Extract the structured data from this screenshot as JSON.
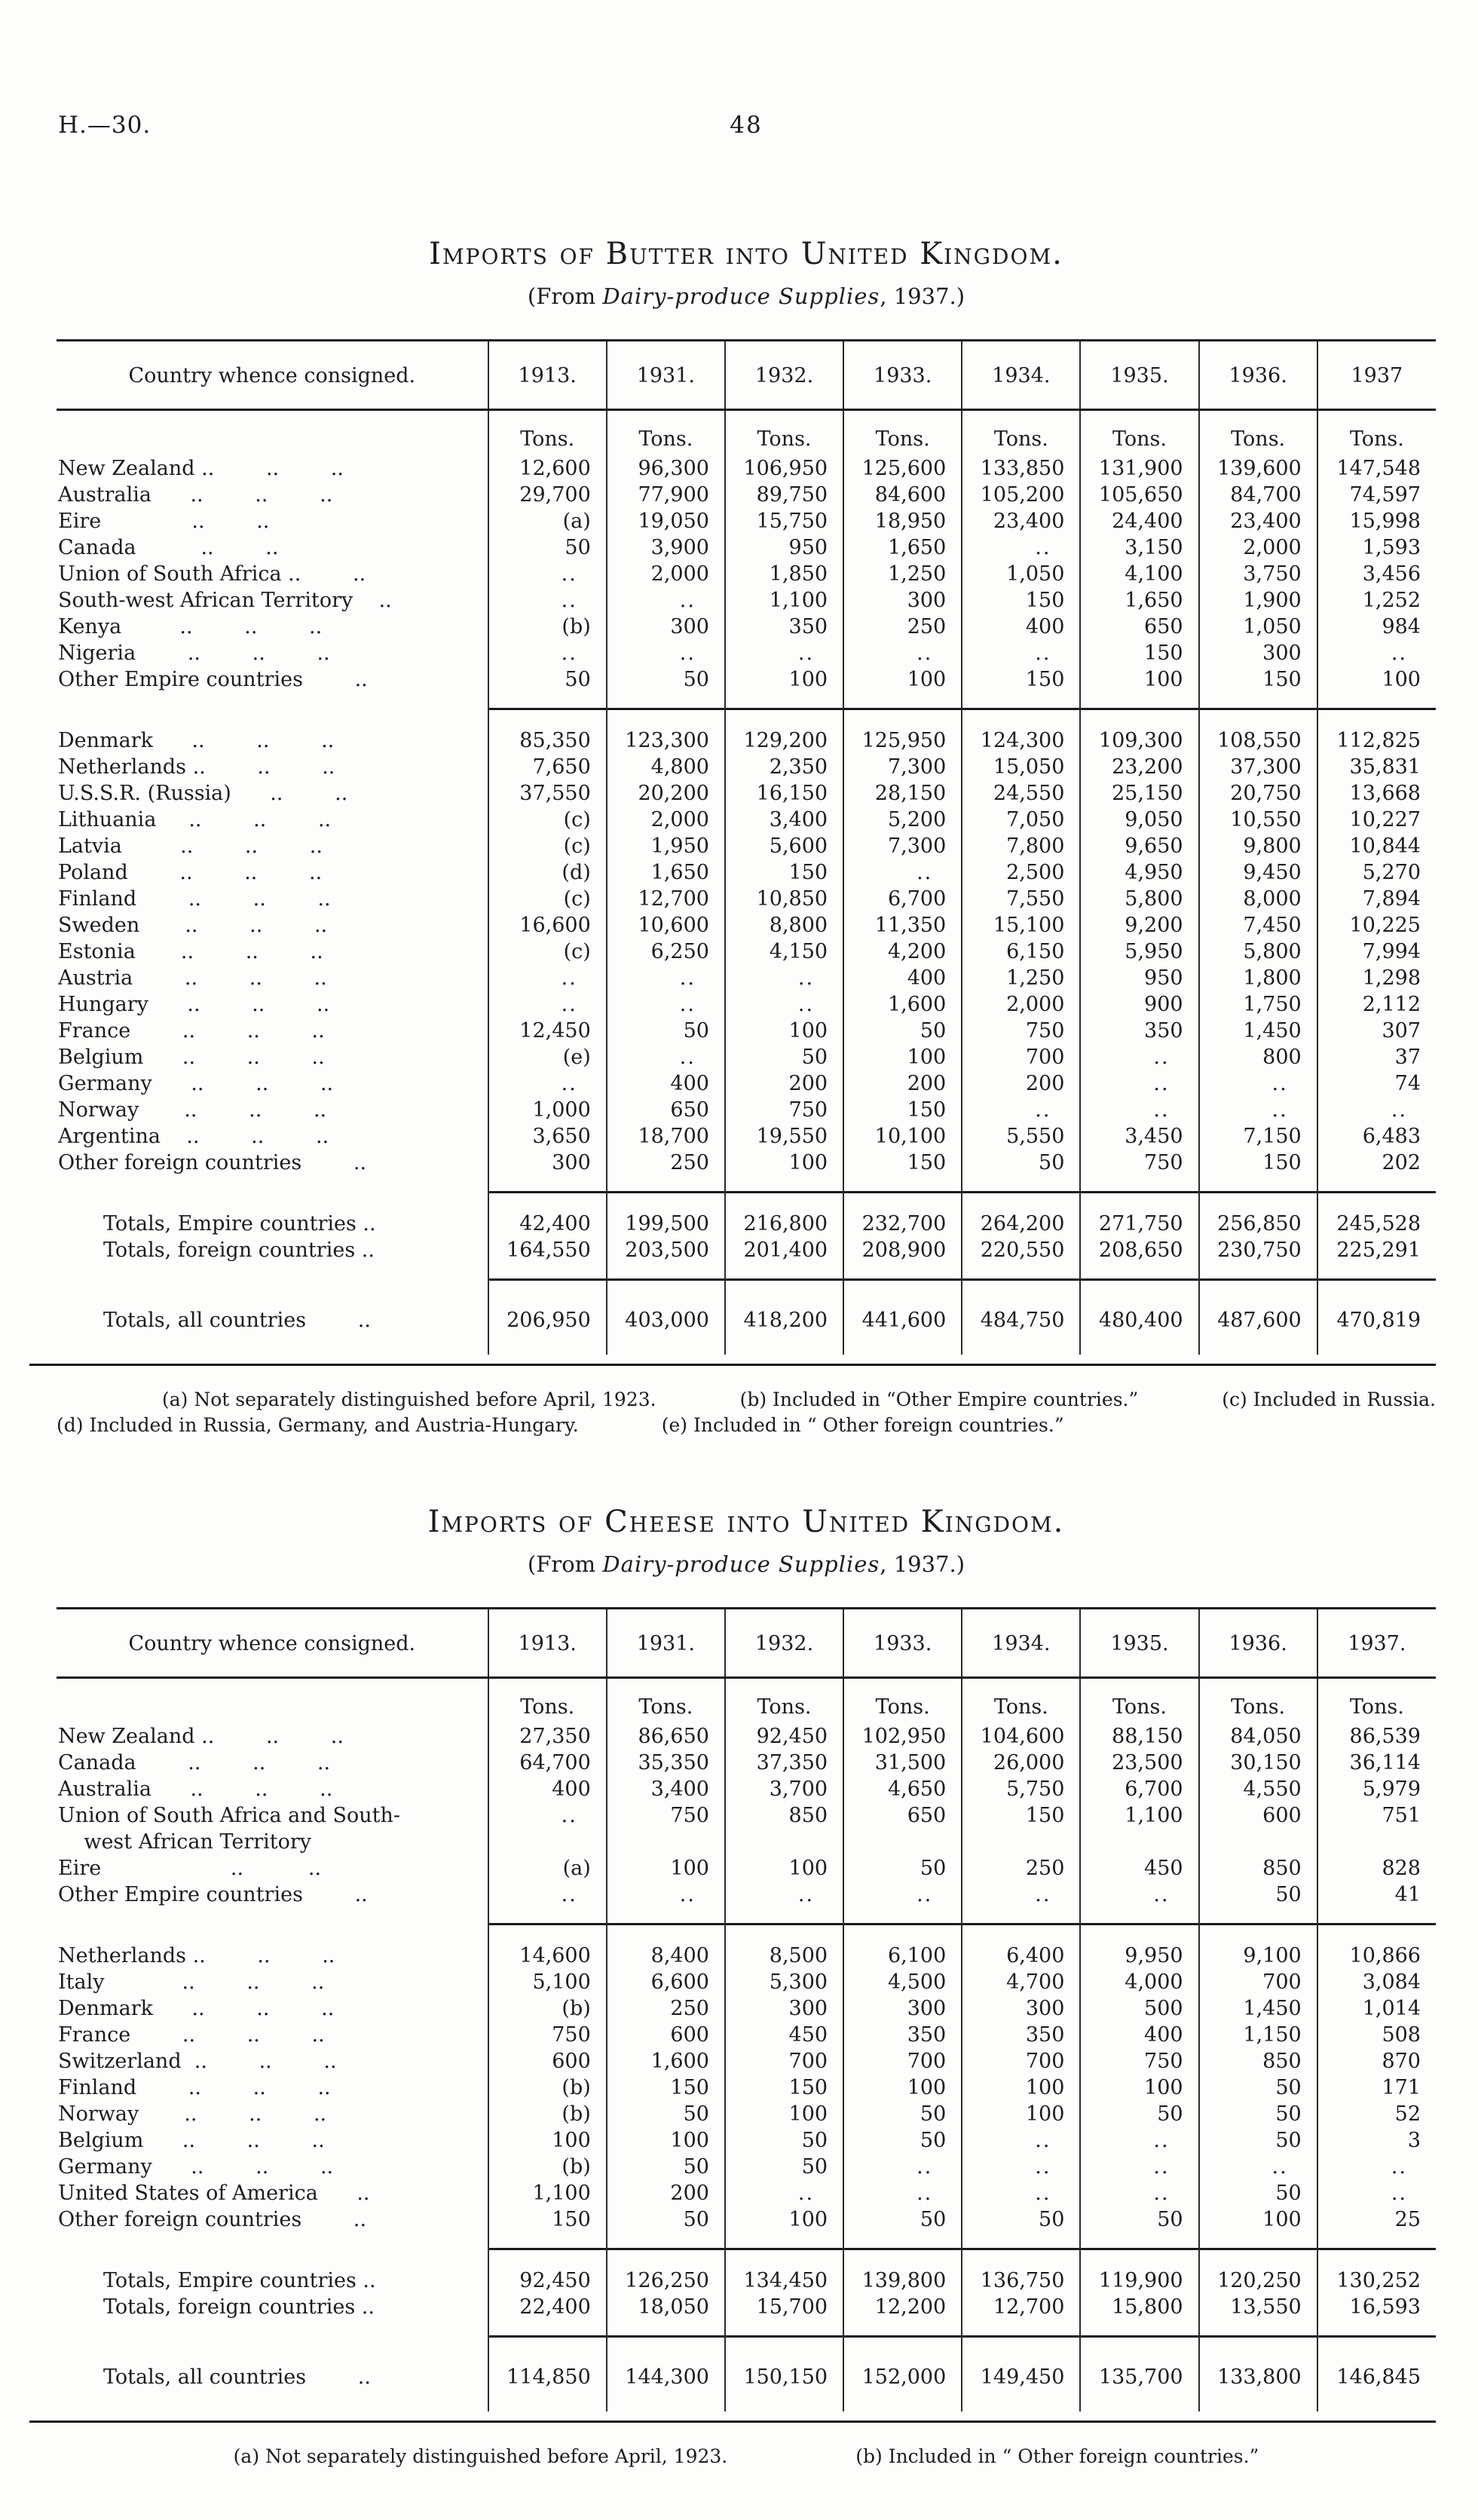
{
  "page": {
    "doc_ref": "H.—30.",
    "page_number": "48"
  },
  "tables": [
    {
      "id": "butter",
      "title": "Imports of Butter into United Kingdom.",
      "subtitle_prefix": "(From ",
      "subtitle_italic": "Dairy-produce Supplies",
      "subtitle_suffix": ", 1937.)",
      "columns": [
        "Country whence consigned.",
        "1913.",
        "1931.",
        "1932.",
        "1933.",
        "1934.",
        "1935.",
        "1936.",
        "1937"
      ],
      "units_label": "Tons.",
      "rows": [
        {
          "type": "units"
        },
        {
          "type": "data",
          "label": "New Zealand ..        ..        ..",
          "values": [
            "12,600",
            "96,300",
            "106,950",
            "125,600",
            "133,850",
            "131,900",
            "139,600",
            "147,548"
          ]
        },
        {
          "type": "data",
          "label": "Australia      ..        ..        ..",
          "values": [
            "29,700",
            "77,900",
            "89,750",
            "84,600",
            "105,200",
            "105,650",
            "84,700",
            "74,597"
          ]
        },
        {
          "type": "data",
          "label": "Eire              ..        ..",
          "values": [
            "(a)",
            "19,050",
            "15,750",
            "18,950",
            "23,400",
            "24,400",
            "23,400",
            "15,998"
          ]
        },
        {
          "type": "data",
          "label": "Canada          ..        ..",
          "values": [
            "50",
            "3,900",
            "950",
            "1,650",
            "..",
            "3,150",
            "2,000",
            "1,593"
          ]
        },
        {
          "type": "data",
          "label": "Union of South Africa ..        ..",
          "values": [
            "..",
            "2,000",
            "1,850",
            "1,250",
            "1,050",
            "4,100",
            "3,750",
            "3,456"
          ]
        },
        {
          "type": "data",
          "label": "South-west African Territory    ..",
          "values": [
            "..",
            "..",
            "1,100",
            "300",
            "150",
            "1,650",
            "1,900",
            "1,252"
          ]
        },
        {
          "type": "data",
          "label": "Kenya         ..        ..        ..",
          "values": [
            "(b)",
            "300",
            "350",
            "250",
            "400",
            "650",
            "1,050",
            "984"
          ]
        },
        {
          "type": "data",
          "label": "Nigeria        ..        ..        ..",
          "values": [
            "..",
            "..",
            "..",
            "..",
            "..",
            "150",
            "300",
            ".."
          ]
        },
        {
          "type": "data",
          "label": "Other Empire countries        ..",
          "values": [
            "50",
            "50",
            "100",
            "100",
            "150",
            "100",
            "150",
            "100"
          ]
        },
        {
          "type": "sep"
        },
        {
          "type": "data",
          "label": "Denmark      ..        ..        ..",
          "values": [
            "85,350",
            "123,300",
            "129,200",
            "125,950",
            "124,300",
            "109,300",
            "108,550",
            "112,825"
          ]
        },
        {
          "type": "data",
          "label": "Netherlands ..        ..        ..",
          "values": [
            "7,650",
            "4,800",
            "2,350",
            "7,300",
            "15,050",
            "23,200",
            "37,300",
            "35,831"
          ]
        },
        {
          "type": "data",
          "label": "U.S.S.R. (Russia)      ..        ..",
          "values": [
            "37,550",
            "20,200",
            "16,150",
            "28,150",
            "24,550",
            "25,150",
            "20,750",
            "13,668"
          ]
        },
        {
          "type": "data",
          "label": "Lithuania     ..        ..        ..",
          "values": [
            "(c)",
            "2,000",
            "3,400",
            "5,200",
            "7,050",
            "9,050",
            "10,550",
            "10,227"
          ]
        },
        {
          "type": "data",
          "label": "Latvia         ..        ..        ..",
          "values": [
            "(c)",
            "1,950",
            "5,600",
            "7,300",
            "7,800",
            "9,650",
            "9,800",
            "10,844"
          ]
        },
        {
          "type": "data",
          "label": "Poland        ..        ..        ..",
          "values": [
            "(d)",
            "1,650",
            "150",
            "..",
            "2,500",
            "4,950",
            "9,450",
            "5,270"
          ]
        },
        {
          "type": "data",
          "label": "Finland        ..        ..        ..",
          "values": [
            "(c)",
            "12,700",
            "10,850",
            "6,700",
            "7,550",
            "5,800",
            "8,000",
            "7,894"
          ]
        },
        {
          "type": "data",
          "label": "Sweden       ..        ..        ..",
          "values": [
            "16,600",
            "10,600",
            "8,800",
            "11,350",
            "15,100",
            "9,200",
            "7,450",
            "10,225"
          ]
        },
        {
          "type": "data",
          "label": "Estonia       ..        ..        ..",
          "values": [
            "(c)",
            "6,250",
            "4,150",
            "4,200",
            "6,150",
            "5,950",
            "5,800",
            "7,994"
          ]
        },
        {
          "type": "data",
          "label": "Austria        ..        ..        ..",
          "values": [
            "..",
            "..",
            "..",
            "400",
            "1,250",
            "950",
            "1,800",
            "1,298"
          ]
        },
        {
          "type": "data",
          "label": "Hungary      ..        ..        ..",
          "values": [
            "..",
            "..",
            "..",
            "1,600",
            "2,000",
            "900",
            "1,750",
            "2,112"
          ]
        },
        {
          "type": "data",
          "label": "France        ..        ..        ..",
          "values": [
            "12,450",
            "50",
            "100",
            "50",
            "750",
            "350",
            "1,450",
            "307"
          ]
        },
        {
          "type": "data",
          "label": "Belgium      ..        ..        ..",
          "values": [
            "(e)",
            "..",
            "50",
            "100",
            "700",
            "..",
            "800",
            "37"
          ]
        },
        {
          "type": "data",
          "label": "Germany      ..        ..        ..",
          "values": [
            "..",
            "400",
            "200",
            "200",
            "200",
            "..",
            "..",
            "74"
          ]
        },
        {
          "type": "data",
          "label": "Norway       ..        ..        ..",
          "values": [
            "1,000",
            "650",
            "750",
            "150",
            "..",
            "..",
            "..",
            ".."
          ]
        },
        {
          "type": "data",
          "label": "Argentina    ..        ..        ..",
          "values": [
            "3,650",
            "18,700",
            "19,550",
            "10,100",
            "5,550",
            "3,450",
            "7,150",
            "6,483"
          ]
        },
        {
          "type": "data",
          "label": "Other foreign countries        ..",
          "values": [
            "300",
            "250",
            "100",
            "150",
            "50",
            "750",
            "150",
            "202"
          ]
        },
        {
          "type": "sep"
        },
        {
          "type": "totals",
          "label": "Totals, Empire countries ..",
          "values": [
            "42,400",
            "199,500",
            "216,800",
            "232,700",
            "264,200",
            "271,750",
            "256,850",
            "245,528"
          ]
        },
        {
          "type": "totals",
          "label": "Totals, foreign countries ..",
          "values": [
            "164,550",
            "203,500",
            "201,400",
            "208,900",
            "220,550",
            "208,650",
            "230,750",
            "225,291"
          ]
        },
        {
          "type": "sep"
        },
        {
          "type": "totalsfinal",
          "label": "Totals, all countries        ..",
          "values": [
            "206,950",
            "403,000",
            "418,200",
            "441,600",
            "484,750",
            "480,400",
            "487,600",
            "470,819"
          ]
        }
      ],
      "footnote_lines": [
        [
          "(a) Not separately distinguished before April, 1923.",
          "(b) Included in “Other Empire countries.”",
          "(c) Included in Russia."
        ],
        [
          "(d) Included in Russia, Germany, and Austria-Hungary.",
          "(e) Included in “ Other foreign countries.”"
        ]
      ]
    },
    {
      "id": "cheese",
      "title": "Imports of Cheese into United Kingdom.",
      "subtitle_prefix": "(From ",
      "subtitle_italic": "Dairy-produce Supplies",
      "subtitle_suffix": ", 1937.)",
      "columns": [
        "Country whence consigned.",
        "1913.",
        "1931.",
        "1932.",
        "1933.",
        "1934.",
        "1935.",
        "1936.",
        "1937."
      ],
      "units_label": "Tons.",
      "rows": [
        {
          "type": "units"
        },
        {
          "type": "data",
          "label": "New Zealand ..        ..        ..",
          "values": [
            "27,350",
            "86,650",
            "92,450",
            "102,950",
            "104,600",
            "88,150",
            "84,050",
            "86,539"
          ]
        },
        {
          "type": "data",
          "label": "Canada        ..        ..        ..",
          "values": [
            "64,700",
            "35,350",
            "37,350",
            "31,500",
            "26,000",
            "23,500",
            "30,150",
            "36,114"
          ]
        },
        {
          "type": "data",
          "label": "Australia      ..        ..        ..",
          "values": [
            "400",
            "3,400",
            "3,700",
            "4,650",
            "5,750",
            "6,700",
            "4,550",
            "5,979"
          ]
        },
        {
          "type": "data",
          "label": "Union of South Africa and South-\n    west African Territory",
          "values": [
            "..",
            "750",
            "850",
            "650",
            "150",
            "1,100",
            "600",
            "751"
          ]
        },
        {
          "type": "data",
          "label": "Eire                    ..          ..",
          "values": [
            "(a)",
            "100",
            "100",
            "50",
            "250",
            "450",
            "850",
            "828"
          ]
        },
        {
          "type": "data",
          "label": "Other Empire countries        ..",
          "values": [
            "..",
            "..",
            "..",
            "..",
            "..",
            "..",
            "50",
            "41"
          ]
        },
        {
          "type": "sep"
        },
        {
          "type": "data",
          "label": "Netherlands ..        ..        ..",
          "values": [
            "14,600",
            "8,400",
            "8,500",
            "6,100",
            "6,400",
            "9,950",
            "9,100",
            "10,866"
          ]
        },
        {
          "type": "data",
          "label": "Italy            ..        ..        ..",
          "values": [
            "5,100",
            "6,600",
            "5,300",
            "4,500",
            "4,700",
            "4,000",
            "700",
            "3,084"
          ]
        },
        {
          "type": "data",
          "label": "Denmark      ..        ..        ..",
          "values": [
            "(b)",
            "250",
            "300",
            "300",
            "300",
            "500",
            "1,450",
            "1,014"
          ]
        },
        {
          "type": "data",
          "label": "France        ..        ..        ..",
          "values": [
            "750",
            "600",
            "450",
            "350",
            "350",
            "400",
            "1,150",
            "508"
          ]
        },
        {
          "type": "data",
          "label": "Switzerland  ..        ..        ..",
          "values": [
            "600",
            "1,600",
            "700",
            "700",
            "700",
            "750",
            "850",
            "870"
          ]
        },
        {
          "type": "data",
          "label": "Finland        ..        ..        ..",
          "values": [
            "(b)",
            "150",
            "150",
            "100",
            "100",
            "100",
            "50",
            "171"
          ]
        },
        {
          "type": "data",
          "label": "Norway       ..        ..        ..",
          "values": [
            "(b)",
            "50",
            "100",
            "50",
            "100",
            "50",
            "50",
            "52"
          ]
        },
        {
          "type": "data",
          "label": "Belgium      ..        ..        ..",
          "values": [
            "100",
            "100",
            "50",
            "50",
            "..",
            "..",
            "50",
            "3"
          ]
        },
        {
          "type": "data",
          "label": "Germany      ..        ..        ..",
          "values": [
            "(b)",
            "50",
            "50",
            "..",
            "..",
            "..",
            "..",
            ".."
          ]
        },
        {
          "type": "data",
          "label": "United States of America      ..",
          "values": [
            "1,100",
            "200",
            "..",
            "..",
            "..",
            "..",
            "50",
            ".."
          ]
        },
        {
          "type": "data",
          "label": "Other foreign countries        ..",
          "values": [
            "150",
            "50",
            "100",
            "50",
            "50",
            "50",
            "100",
            "25"
          ]
        },
        {
          "type": "sep"
        },
        {
          "type": "totals",
          "label": "Totals, Empire countries ..",
          "values": [
            "92,450",
            "126,250",
            "134,450",
            "139,800",
            "136,750",
            "119,900",
            "120,250",
            "130,252"
          ]
        },
        {
          "type": "totals",
          "label": "Totals, foreign countries ..",
          "values": [
            "22,400",
            "18,050",
            "15,700",
            "12,200",
            "12,700",
            "15,800",
            "13,550",
            "16,593"
          ]
        },
        {
          "type": "sep"
        },
        {
          "type": "totalsfinal",
          "label": "Totals, all countries        ..",
          "values": [
            "114,850",
            "144,300",
            "150,150",
            "152,000",
            "149,450",
            "135,700",
            "133,800",
            "146,845"
          ]
        }
      ],
      "footnote_lines": [
        [
          "(a) Not separately distinguished before April, 1923.",
          "(b) Included in “ Other foreign countries.”"
        ]
      ]
    }
  ]
}
